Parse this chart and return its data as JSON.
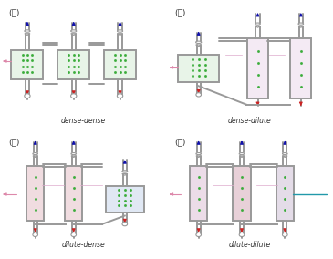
{
  "pipe_color": "#999999",
  "pipe_lw": 1.4,
  "pipe_inner_color": "#cccccc",
  "green_color": "#33aa33",
  "red_color": "#cc2222",
  "blue_color": "#1111aa",
  "pink_color": "#dd88aa",
  "teal_color": "#2299aa",
  "dense_fill": "#e8f4e8",
  "dilute_fill": "#f0e0e8",
  "text_color": "#444444",
  "bg_color": "#ffffff",
  "panels": [
    {
      "label": "(가)",
      "name": "dense-dense"
    },
    {
      "label": "(나)",
      "name": "dense-dilute"
    },
    {
      "label": "(다)",
      "name": "dilute-dense"
    },
    {
      "label": "(라)",
      "name": "dilute-dilute"
    }
  ]
}
